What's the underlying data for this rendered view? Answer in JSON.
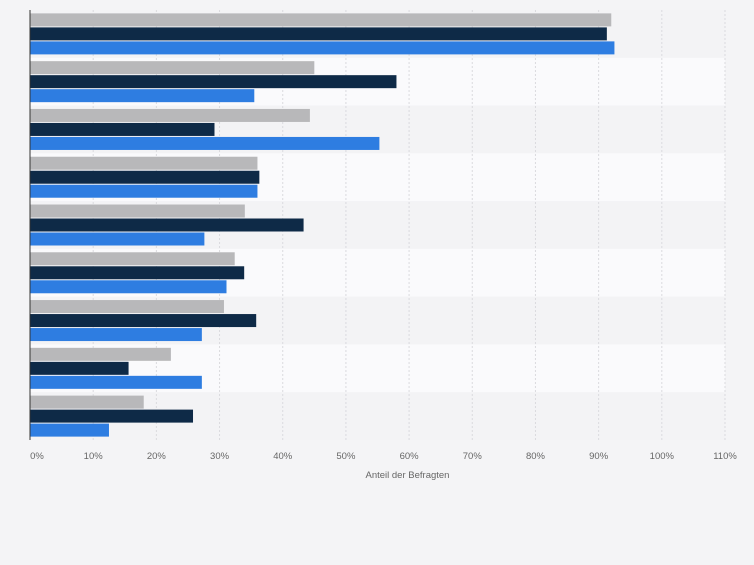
{
  "chart_data": {
    "type": "bar",
    "orientation": "horizontal",
    "title": "",
    "xlabel": "Anteil der Befragten",
    "ylabel": "",
    "xlim": [
      0,
      110
    ],
    "ticks": [
      0,
      10,
      20,
      30,
      40,
      50,
      60,
      70,
      80,
      90,
      100,
      110
    ],
    "tick_labels": [
      "0%",
      "10%",
      "20%",
      "30%",
      "40%",
      "50%",
      "60%",
      "70%",
      "80%",
      "90%",
      "100%",
      "110%"
    ],
    "categories": [
      "",
      "",
      "",
      "",
      "",
      "",
      "",
      "",
      ""
    ],
    "series": [
      {
        "name": "Series 1",
        "color": "#b8b8ba",
        "values": [
          92,
          45,
          44.3,
          36,
          34,
          32.4,
          30.7,
          22.3,
          18
        ]
      },
      {
        "name": "Series 2",
        "color": "#0e2a47",
        "values": [
          91.3,
          58,
          29.2,
          36.3,
          43.3,
          33.9,
          35.8,
          15.6,
          25.8
        ]
      },
      {
        "name": "Series 3",
        "color": "#2e7de1",
        "values": [
          92.5,
          35.5,
          55.3,
          36,
          27.6,
          31.1,
          27.2,
          27.2,
          12.5
        ]
      }
    ],
    "grid": true,
    "legend": "none"
  }
}
